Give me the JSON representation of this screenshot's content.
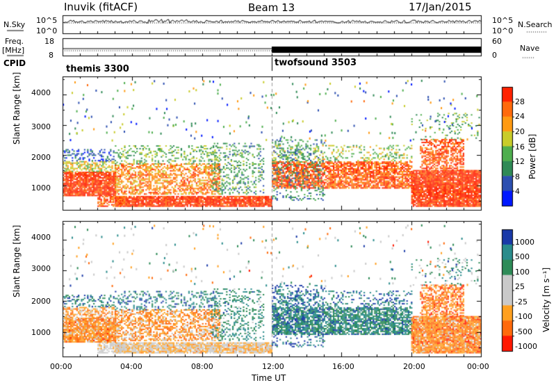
{
  "header": {
    "station": "Inuvik (fitACF)",
    "beam": "Beam 13",
    "date": "17/Jan/2015"
  },
  "top_panels": {
    "nsky_label": "N.Sky",
    "nsky_ticks": [
      "10^5",
      "10^0"
    ],
    "nsearch_label": "N.Search",
    "nsearch_ticks": [
      "10^5",
      "10^0"
    ],
    "freq_label": "Freq.",
    "freq_unit": "[MHz]",
    "freq_ticks": [
      "18",
      "8"
    ],
    "nave_label": "Nave",
    "nave_ticks": [
      "60",
      "0"
    ],
    "cpid_label": "CPID",
    "cpid_segments": [
      {
        "name": "themis 3300",
        "start_hour": 0
      },
      {
        "name": "twofsound 3503",
        "start_hour": 12
      }
    ]
  },
  "colors": {
    "power": [
      "#0018ff",
      "#2c4fb0",
      "#2f8a56",
      "#4eae4e",
      "#c8cc2a",
      "#ff9a12",
      "#ff6a0c",
      "#ff2200"
    ],
    "velocity": [
      "#ff1800",
      "#ff6a0c",
      "#ffa020",
      "#c9c9c9",
      "#c9c9c9",
      "#2e8b57",
      "#2a8c8c",
      "#1a3aa8"
    ]
  },
  "chart_data": [
    {
      "type": "heatmap",
      "title": "",
      "xlabel": "Time UT",
      "ylabel": "Slant Range [km]",
      "xlim": [
        0,
        24
      ],
      "ylim": [
        200,
        4600
      ],
      "x_ticks": [
        "00:00",
        "04:00",
        "08:00",
        "12:00",
        "16:00",
        "20:00",
        "00:00"
      ],
      "y_ticks": [
        "1000",
        "2000",
        "3000",
        "4000"
      ],
      "colorbar": {
        "label": "Power [dB]",
        "ticks": [
          "4",
          "8",
          "12",
          "16",
          "20",
          "24",
          "28"
        ],
        "range": [
          0,
          30
        ]
      },
      "features": [
        {
          "time_start": 0,
          "time_end": 12,
          "range_start": 300,
          "range_end": 700,
          "power": 29
        },
        {
          "time_start": 0,
          "time_end": 8,
          "range_start": 800,
          "range_end": 1600,
          "power": 26
        },
        {
          "time_start": 12,
          "time_end": 20,
          "range_start": 900,
          "range_end": 1800,
          "power": 22
        },
        {
          "time_start": 20,
          "time_end": 24,
          "range_start": 400,
          "range_end": 2400,
          "power": 27
        }
      ]
    },
    {
      "type": "heatmap",
      "title": "",
      "xlabel": "Time UT",
      "ylabel": "Slant Range [km]",
      "xlim": [
        0,
        24
      ],
      "ylim": [
        200,
        4600
      ],
      "x_ticks": [
        "00:00",
        "04:00",
        "08:00",
        "12:00",
        "16:00",
        "20:00",
        "00:00"
      ],
      "y_ticks": [
        "1000",
        "2000",
        "3000",
        "4000"
      ],
      "colorbar": {
        "label": "Velocity [m s⁻¹]",
        "ticks": [
          "1000",
          "500",
          "100",
          "25",
          "-25",
          "-100",
          "-500",
          "-1000"
        ]
      },
      "features": [
        {
          "time_start": 0,
          "time_end": 12,
          "range_start": 300,
          "range_end": 700,
          "velocity": 0
        },
        {
          "time_start": 0,
          "time_end": 8,
          "range_start": 800,
          "range_end": 1600,
          "velocity": -200
        },
        {
          "time_start": 12,
          "time_end": 20,
          "range_start": 900,
          "range_end": 1800,
          "velocity": 300
        },
        {
          "time_start": 20,
          "time_end": 24,
          "range_start": 400,
          "range_end": 2400,
          "velocity": -300
        }
      ]
    }
  ]
}
